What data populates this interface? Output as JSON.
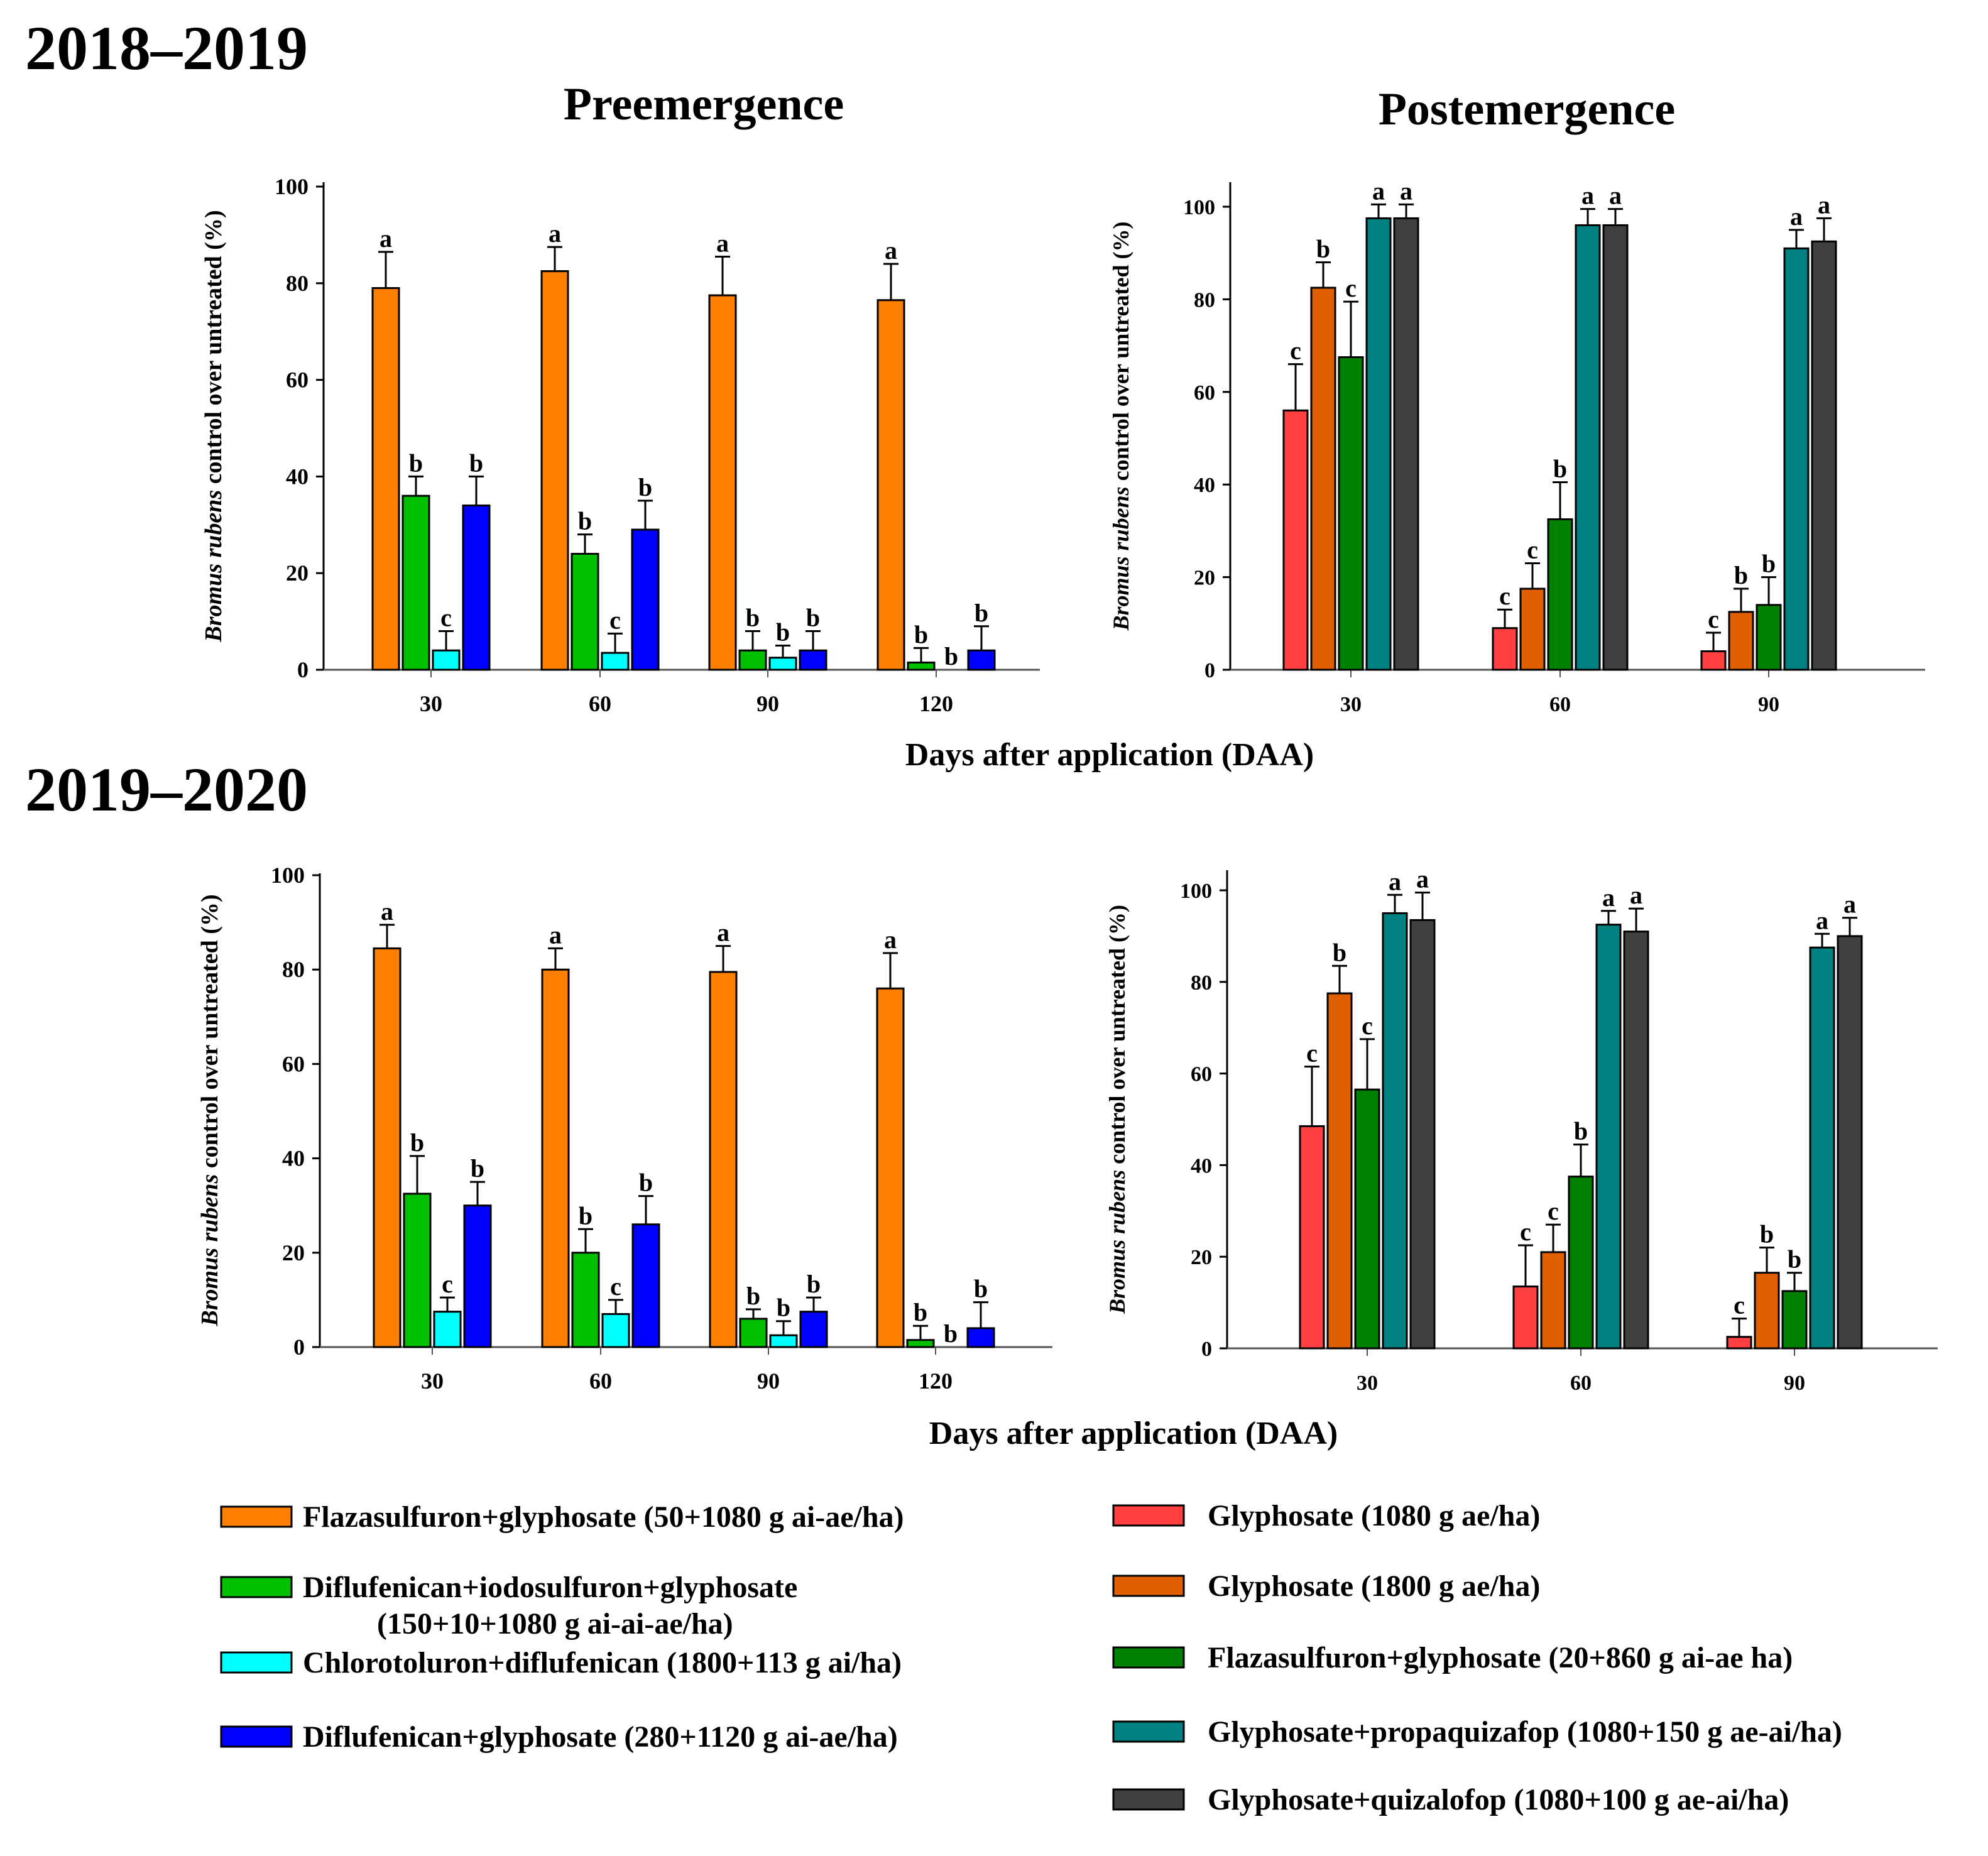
{
  "chart_data": [
    {
      "type": "bar",
      "period": "2018–2019",
      "title": "Preemergence",
      "ylabel_italic": "Bromus rubens",
      "ylabel_rest": " control over untreated (%)",
      "xlabel": "Days after application (DAA)",
      "categories": [
        "30",
        "60",
        "90",
        "120"
      ],
      "ylim": [
        0,
        100
      ],
      "yticks": [
        0,
        20,
        40,
        60,
        80,
        100
      ],
      "series": [
        {
          "legend": 0,
          "values": [
            79,
            82.5,
            77.5,
            76.5
          ],
          "errors": [
            7.5,
            5,
            8,
            7.5
          ],
          "letters": [
            "a",
            "a",
            "a",
            "a"
          ]
        },
        {
          "legend": 1,
          "values": [
            36,
            24,
            4,
            1.5
          ],
          "errors": [
            4,
            4,
            4,
            3
          ],
          "letters": [
            "b",
            "b",
            "b",
            "b"
          ]
        },
        {
          "legend": 2,
          "values": [
            4,
            3.5,
            2.5,
            0
          ],
          "errors": [
            4,
            4,
            2.5,
            0
          ],
          "letters": [
            "c",
            "c",
            "b",
            "b"
          ]
        },
        {
          "legend": 3,
          "values": [
            34,
            29,
            4,
            4
          ],
          "errors": [
            6,
            6,
            4,
            5
          ],
          "letters": [
            "b",
            "b",
            "b",
            "b"
          ]
        }
      ]
    },
    {
      "type": "bar",
      "title": "Postemergence",
      "ylabel_italic": "Bromus rubens",
      "ylabel_rest": " control over untreated (%)",
      "categories": [
        "30",
        "60",
        "90"
      ],
      "ylim": [
        0,
        105
      ],
      "yticks": [
        0,
        20,
        40,
        60,
        80,
        100
      ],
      "series": [
        {
          "legend": 4,
          "values": [
            56,
            9,
            4
          ],
          "errors": [
            10,
            4,
            4
          ],
          "letters": [
            "c",
            "c",
            "c"
          ]
        },
        {
          "legend": 5,
          "values": [
            82.5,
            17.5,
            12.5
          ],
          "errors": [
            5.5,
            5.5,
            5
          ],
          "letters": [
            "b",
            "c",
            "b"
          ]
        },
        {
          "legend": 6,
          "values": [
            67.5,
            32.5,
            14
          ],
          "errors": [
            12,
            8,
            6
          ],
          "letters": [
            "c",
            "b",
            "b"
          ]
        },
        {
          "legend": 7,
          "values": [
            97.5,
            96,
            91
          ],
          "errors": [
            3,
            3.5,
            4
          ],
          "letters": [
            "a",
            "a",
            "a"
          ]
        },
        {
          "legend": 8,
          "values": [
            97.5,
            96,
            92.5
          ],
          "errors": [
            3,
            3.5,
            5
          ],
          "letters": [
            "a",
            "a",
            "a"
          ]
        }
      ]
    },
    {
      "type": "bar",
      "period": "2019–2020",
      "ylabel_italic": "Bromus rubens",
      "ylabel_rest": " control over untreated (%)",
      "xlabel": "Days after application (DAA)",
      "categories": [
        "30",
        "60",
        "90",
        "120"
      ],
      "ylim": [
        0,
        100
      ],
      "yticks": [
        0,
        20,
        40,
        60,
        80,
        100
      ],
      "series": [
        {
          "legend": 0,
          "values": [
            84.5,
            80,
            79.5,
            76
          ],
          "errors": [
            5,
            4.5,
            5.5,
            7.5
          ],
          "letters": [
            "a",
            "a",
            "a",
            "a"
          ]
        },
        {
          "legend": 1,
          "values": [
            32.5,
            20,
            6,
            1.5
          ],
          "errors": [
            8,
            5,
            2,
            3
          ],
          "letters": [
            "b",
            "b",
            "b",
            "b"
          ]
        },
        {
          "legend": 2,
          "values": [
            7.5,
            7,
            2.5,
            0
          ],
          "errors": [
            3,
            3,
            3,
            0
          ],
          "letters": [
            "c",
            "c",
            "b",
            "b"
          ]
        },
        {
          "legend": 3,
          "values": [
            30,
            26,
            7.5,
            4
          ],
          "errors": [
            5,
            6,
            3,
            5.5
          ],
          "letters": [
            "b",
            "b",
            "b",
            "b"
          ]
        }
      ]
    },
    {
      "type": "bar",
      "ylabel_italic": "Bromus rubens",
      "ylabel_rest": " control over untreated (%)",
      "categories": [
        "30",
        "60",
        "90"
      ],
      "ylim": [
        0,
        105
      ],
      "yticks": [
        0,
        20,
        40,
        60,
        80,
        100
      ],
      "series": [
        {
          "legend": 4,
          "values": [
            48.5,
            13.5,
            2.5
          ],
          "errors": [
            13,
            9,
            4
          ],
          "letters": [
            "c",
            "c",
            "c"
          ]
        },
        {
          "legend": 5,
          "values": [
            77.5,
            21,
            16.5
          ],
          "errors": [
            6,
            6,
            5.5
          ],
          "letters": [
            "b",
            "c",
            "b"
          ]
        },
        {
          "legend": 6,
          "values": [
            56.5,
            37.5,
            12.5
          ],
          "errors": [
            11,
            7,
            4
          ],
          "letters": [
            "c",
            "b",
            "b"
          ]
        },
        {
          "legend": 7,
          "values": [
            95,
            92.5,
            87.5
          ],
          "errors": [
            4,
            3,
            3
          ],
          "letters": [
            "a",
            "a",
            "a"
          ]
        },
        {
          "legend": 8,
          "values": [
            93.5,
            91,
            90
          ],
          "errors": [
            6,
            5,
            4
          ],
          "letters": [
            "a",
            "a",
            "a"
          ]
        }
      ]
    }
  ],
  "legend": [
    {
      "label": "Flazasulfuron+glyphosate (50+1080 g ai-ae/ha)",
      "color": "#FF8000"
    },
    {
      "label": "Diflufenican+iodosulfuron+glyphosate",
      "label2": "(150+10+1080 g ai-ai-ae/ha)",
      "color": "#00C000"
    },
    {
      "label": "Chlorotoluron+diflufenican (1800+113 g ai/ha)",
      "color": "#00FFFF"
    },
    {
      "label": "Diflufenican+glyphosate (280+1120 g ai-ae/ha)",
      "color": "#0000FF"
    },
    {
      "label": "Glyphosate (1080 g ae/ha)",
      "color": "#FF4040"
    },
    {
      "label": "Glyphosate (1800 g ae/ha)",
      "color": "#E06000"
    },
    {
      "label": "Flazasulfuron+glyphosate (20+860 g ai-ae ha)",
      "color": "#008000"
    },
    {
      "label": "Glyphosate+propaquizafop (1080+150 g ae-ai/ha)",
      "color": "#008080"
    },
    {
      "label": "Glyphosate+quizalofop (1080+100 g ae-ai/ha)",
      "color": "#404040"
    }
  ]
}
